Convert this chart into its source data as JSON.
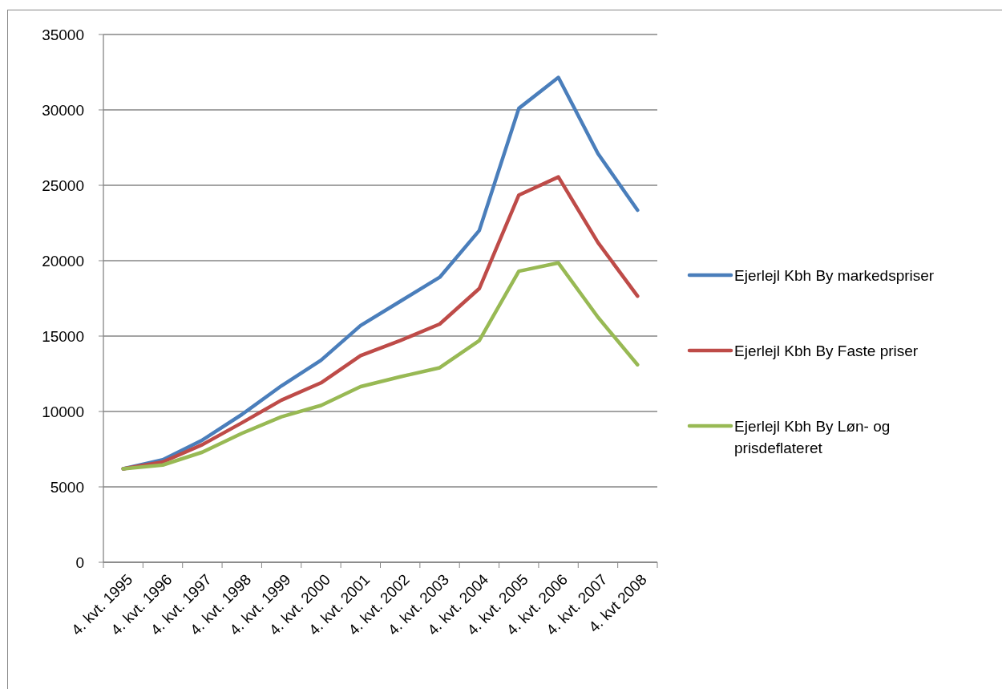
{
  "chart_data": {
    "type": "line",
    "categories": [
      "4. kvt. 1995",
      "4. kvt. 1996",
      "4. kvt. 1997",
      "4. kvt. 1998",
      "4. kvt. 1999",
      "4. kvt. 2000",
      "4. kvt. 2001",
      "4. kvt. 2002",
      "4. kvt. 2003",
      "4. kvt. 2004",
      "4. kvt. 2005",
      "4. kvt. 2006",
      "4. kvt. 2007",
      "4. kvt 2008"
    ],
    "series": [
      {
        "name": "Ejerlejl Kbh By markedspriser",
        "color": "#4a7ebb",
        "values": [
          6200,
          6800,
          8100,
          9800,
          11700,
          13400,
          15700,
          17300,
          18900,
          22000,
          30100,
          32150,
          27100,
          23350
        ]
      },
      {
        "name": "Ejerlejl Kbh By Faste priser",
        "color": "#be4b48",
        "values": [
          6200,
          6650,
          7800,
          9250,
          10750,
          11900,
          13700,
          14700,
          15800,
          18150,
          24350,
          25550,
          21200,
          17650
        ]
      },
      {
        "name": "Ejerlejl Kbh By Løn- og prisdeflateret",
        "color": "#98b954",
        "values": [
          6200,
          6450,
          7300,
          8550,
          9650,
          10400,
          11650,
          12300,
          12900,
          14700,
          19300,
          19850,
          16250,
          13100
        ]
      }
    ],
    "ylim": [
      0,
      35000
    ],
    "yticks": [
      0,
      5000,
      10000,
      15000,
      20000,
      25000,
      30000,
      35000
    ],
    "grid": "y",
    "legend": "right",
    "marker": "none",
    "line_style": "solid"
  }
}
